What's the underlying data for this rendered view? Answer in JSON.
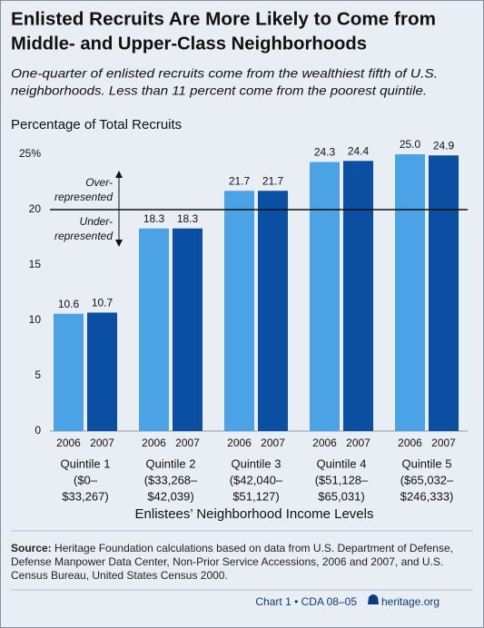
{
  "chart_data": {
    "type": "bar",
    "title": [
      "Enlisted Recruits Are More Likely to Come from",
      "Middle- and Upper-Class Neighborhoods"
    ],
    "subtitle": [
      "One-quarter of enlisted recruits come from the wealthiest fifth of U.S.",
      "neighborhoods. Less than 11 percent come from the poorest quintile."
    ],
    "y_label": "Percentage of Total Recruits",
    "x_label": "Enlistees’ Neighborhood Income Levels",
    "categories": [
      "Quintile 1",
      "Quintile 2",
      "Quintile 3",
      "Quintile 4",
      "Quintile 5"
    ],
    "category_ranges": [
      [
        "($0–",
        "$33,267)"
      ],
      [
        "($33,268–",
        "$42,039)"
      ],
      [
        "($42,040–",
        "$51,127)"
      ],
      [
        "($51,128–",
        "$65,031)"
      ],
      [
        "($65,032–",
        "$246,333)"
      ]
    ],
    "series": [
      {
        "name": "2006",
        "color": "#4ba3e6",
        "values": [
          10.6,
          18.3,
          21.7,
          24.3,
          25
        ],
        "value_labels": [
          "10.6",
          "18.3",
          "21.7",
          "24.3",
          "25.0"
        ]
      },
      {
        "name": "2007",
        "color": "#0b4fa3",
        "values": [
          10.7,
          18.3,
          21.7,
          24.4,
          24.9
        ],
        "value_labels": [
          "10.7",
          "18.3",
          "21.7",
          "24.4",
          "24.9"
        ]
      }
    ],
    "ylim": [
      0,
      25
    ],
    "yticks": [
      0,
      5,
      10,
      15,
      20,
      {
        "value": 25,
        "label": "25%"
      }
    ],
    "reference_line": {
      "value": 20,
      "above": [
        "Over-",
        "represented"
      ],
      "below": [
        "Under-",
        "represented"
      ]
    },
    "source_label": "Source:",
    "source_text": "Heritage Foundation calculations based on data from U.S. Department of Defense, Defense Manpower Data Center, Non-Prior Service Accessions, 2006 and 2007, and U.S. Census Bureau, United States Census 2000.",
    "footer": [
      "Chart 1 • CDA 08–05",
      "heritage.org"
    ]
  }
}
